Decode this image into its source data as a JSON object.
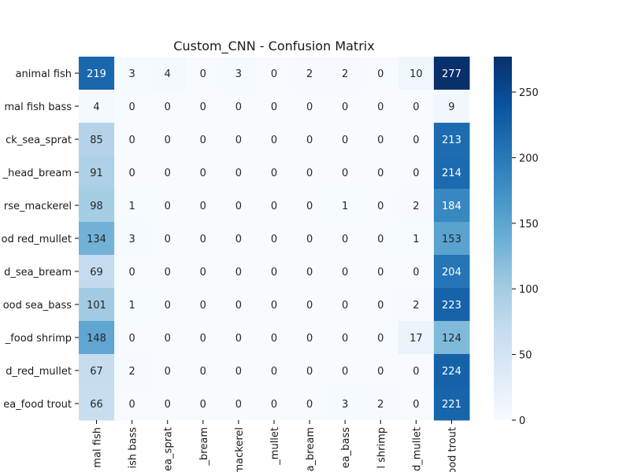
{
  "chart_data": {
    "type": "heatmap",
    "title": "Custom_CNN - Confusion Matrix",
    "row_labels": [
      "animal fish",
      "mal fish bass",
      "ck_sea_sprat",
      "_head_bream",
      "rse_mackerel",
      "od red_mullet",
      "d_sea_bream",
      "ood sea_bass",
      "_food shrimp",
      "d_red_mullet",
      "ea_food trout"
    ],
    "col_labels": [
      "mal fish",
      "ish bass",
      "ea_sprat",
      "_bream",
      "mackerel",
      "_mullet",
      "a_bream",
      "ea_bass",
      "l shrimp",
      "d_mullet",
      "ood trout"
    ],
    "values": [
      [
        219,
        3,
        4,
        0,
        3,
        0,
        2,
        2,
        0,
        10,
        277
      ],
      [
        4,
        0,
        0,
        0,
        0,
        0,
        0,
        0,
        0,
        0,
        9
      ],
      [
        85,
        0,
        0,
        0,
        0,
        0,
        0,
        0,
        0,
        0,
        213
      ],
      [
        91,
        0,
        0,
        0,
        0,
        0,
        0,
        0,
        0,
        0,
        214
      ],
      [
        98,
        1,
        0,
        0,
        0,
        0,
        0,
        1,
        0,
        2,
        184
      ],
      [
        134,
        3,
        0,
        0,
        0,
        0,
        0,
        0,
        0,
        1,
        153
      ],
      [
        69,
        0,
        0,
        0,
        0,
        0,
        0,
        0,
        0,
        0,
        204
      ],
      [
        101,
        1,
        0,
        0,
        0,
        0,
        0,
        0,
        0,
        2,
        223
      ],
      [
        148,
        0,
        0,
        0,
        0,
        0,
        0,
        0,
        0,
        17,
        124
      ],
      [
        67,
        2,
        0,
        0,
        0,
        0,
        0,
        0,
        0,
        0,
        224
      ],
      [
        66,
        0,
        0,
        0,
        0,
        0,
        0,
        3,
        2,
        0,
        221
      ]
    ],
    "colormap": "Blues",
    "vmin": 0,
    "vmax": 277,
    "colorbar_ticks": [
      0,
      50,
      100,
      150,
      200,
      250
    ],
    "colorbar_tick_labels": [
      "0",
      "50",
      "100",
      "150",
      "200",
      "250"
    ]
  }
}
